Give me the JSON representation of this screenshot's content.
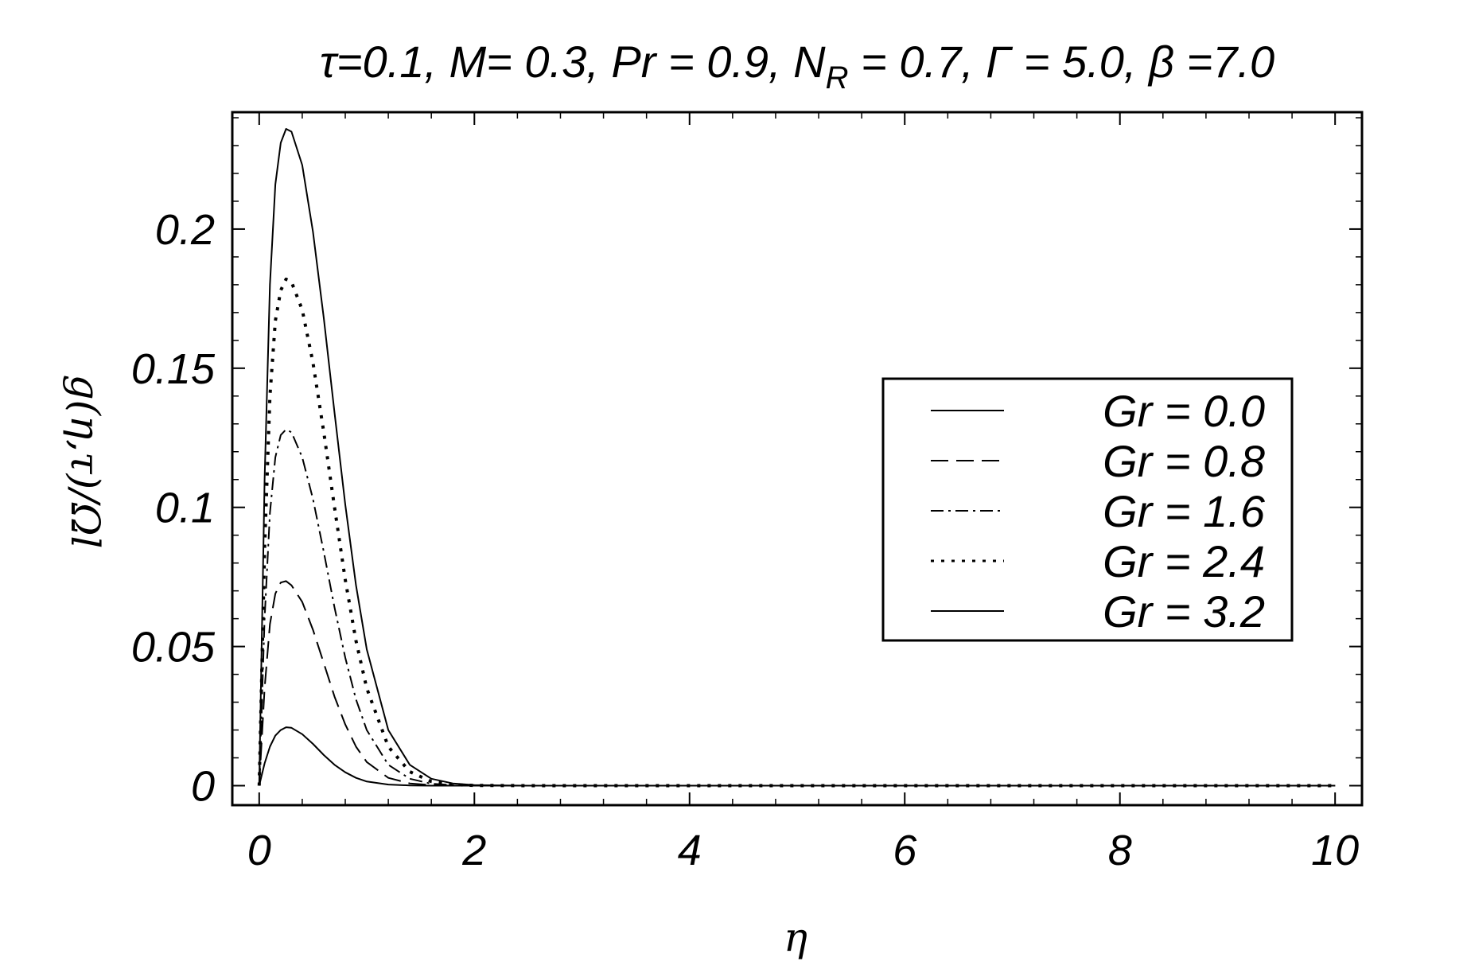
{
  "chart_data": {
    "type": "line",
    "title": "τ=0.1, M= 0.3, Pr = 0.9, N_R = 0.7, Γ = 5.0, β =7.0",
    "title_parts": {
      "main": "τ=0.1, M= 0.3, Pr = 0.9, N",
      "sub": "R",
      "rest": " = 0.7, Γ = 5.0, β =7.0"
    },
    "xlabel": "η",
    "ylabel": "g(η,τ)/Ωl",
    "xlim": [
      -0.25,
      10.25
    ],
    "ylim": [
      -0.007,
      0.242
    ],
    "x_ticks": [
      "0",
      "2",
      "4",
      "6",
      "8",
      "10"
    ],
    "y_ticks": [
      "0",
      "0.05",
      "0.1",
      "0.15",
      "0.2"
    ],
    "legend_position": "right",
    "grid": false,
    "series": [
      {
        "name": "Gr = 0.0",
        "style": "solid",
        "x": [
          0,
          0.05,
          0.1,
          0.15,
          0.2,
          0.25,
          0.3,
          0.4,
          0.5,
          0.6,
          0.7,
          0.8,
          0.9,
          1.0,
          1.2,
          1.4,
          1.6,
          1.8,
          2.0,
          2.5,
          3,
          4,
          5,
          6,
          7,
          8,
          9,
          10
        ],
        "values": [
          0,
          0.008,
          0.014,
          0.018,
          0.02,
          0.021,
          0.0208,
          0.0185,
          0.015,
          0.011,
          0.0075,
          0.0048,
          0.0028,
          0.0015,
          0.0004,
          0.0001,
          0,
          0,
          0,
          0,
          0,
          0,
          0,
          0,
          0,
          0,
          0,
          0
        ]
      },
      {
        "name": "Gr = 0.8",
        "style": "dashed",
        "x": [
          0,
          0.05,
          0.1,
          0.15,
          0.2,
          0.25,
          0.3,
          0.4,
          0.5,
          0.6,
          0.7,
          0.8,
          0.9,
          1.0,
          1.2,
          1.4,
          1.6,
          1.8,
          2.0,
          2.5,
          3,
          4,
          5,
          6,
          7,
          8,
          9,
          10
        ],
        "values": [
          0,
          0.035,
          0.058,
          0.069,
          0.073,
          0.0735,
          0.072,
          0.066,
          0.056,
          0.044,
          0.032,
          0.022,
          0.014,
          0.0085,
          0.0028,
          0.0008,
          0.0002,
          0,
          0,
          0,
          0,
          0,
          0,
          0,
          0,
          0,
          0,
          0
        ]
      },
      {
        "name": "Gr = 1.6",
        "style": "dash-dot",
        "x": [
          0,
          0.05,
          0.1,
          0.15,
          0.2,
          0.25,
          0.3,
          0.4,
          0.5,
          0.6,
          0.7,
          0.8,
          0.9,
          1.0,
          1.2,
          1.4,
          1.6,
          1.8,
          2.0,
          2.5,
          3,
          4,
          5,
          6,
          7,
          8,
          9,
          10
        ],
        "values": [
          0,
          0.06,
          0.098,
          0.118,
          0.126,
          0.128,
          0.127,
          0.118,
          0.103,
          0.084,
          0.064,
          0.046,
          0.031,
          0.02,
          0.0075,
          0.0025,
          0.0007,
          0.0002,
          0,
          0,
          0,
          0,
          0,
          0,
          0,
          0,
          0,
          0
        ]
      },
      {
        "name": "Gr = 2.4",
        "style": "dotted",
        "x": [
          0,
          0.05,
          0.1,
          0.15,
          0.2,
          0.25,
          0.3,
          0.4,
          0.5,
          0.6,
          0.7,
          0.8,
          0.9,
          1.0,
          1.2,
          1.4,
          1.6,
          1.8,
          2.0,
          2.5,
          3,
          4,
          5,
          6,
          7,
          8,
          9,
          10
        ],
        "values": [
          0,
          0.085,
          0.14,
          0.167,
          0.178,
          0.182,
          0.181,
          0.171,
          0.152,
          0.127,
          0.1,
          0.074,
          0.052,
          0.035,
          0.014,
          0.005,
          0.0015,
          0.0004,
          0.0001,
          0,
          0,
          0,
          0,
          0,
          0,
          0,
          0,
          0
        ]
      },
      {
        "name": "Gr = 3.2",
        "style": "solid",
        "x": [
          0,
          0.05,
          0.1,
          0.15,
          0.2,
          0.25,
          0.3,
          0.4,
          0.5,
          0.6,
          0.7,
          0.8,
          0.9,
          1.0,
          1.2,
          1.4,
          1.6,
          1.8,
          2.0,
          2.5,
          3,
          4,
          5,
          6,
          7,
          8,
          9,
          10
        ],
        "values": [
          0,
          0.11,
          0.18,
          0.216,
          0.231,
          0.236,
          0.235,
          0.223,
          0.199,
          0.168,
          0.134,
          0.101,
          0.072,
          0.049,
          0.02,
          0.0075,
          0.0025,
          0.0008,
          0.0002,
          0,
          0,
          0,
          0,
          0,
          0,
          0,
          0,
          0
        ]
      }
    ]
  }
}
